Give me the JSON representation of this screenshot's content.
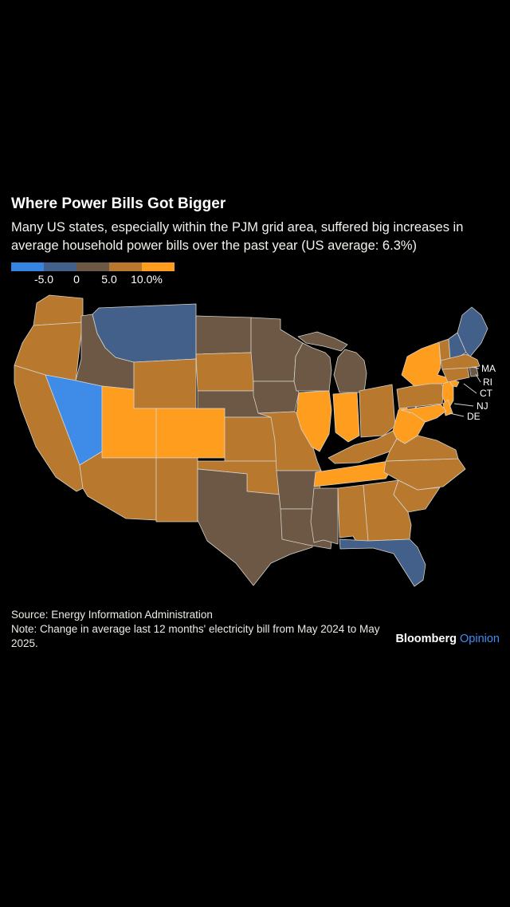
{
  "header": {
    "title": "Where Power Bills Got Bigger",
    "subtitle": "Many US states, especially within the PJM grid area, suffered big increases in average household power bills over the past year (US average: 6.3%)"
  },
  "legend": {
    "colors": [
      "#3584DF",
      "#43608A",
      "#6C5844",
      "#B8792F",
      "#FF9D1F"
    ],
    "ticks": [
      "-5.0",
      "0",
      "5.0",
      "10.0%"
    ]
  },
  "footer": {
    "source": "Source: Energy Information Administration",
    "note": "Note: Change in average last 12 months' electricity bill from May 2024 to May 2025.",
    "brand": "Bloomberg",
    "brand_edition": "Opinion",
    "brand_edition_color": "#3D8FF5"
  },
  "chart_data": {
    "type": "choropleth",
    "title": "Where Power Bills Got Bigger",
    "metric": "Change in average last 12 months' electricity bill, May 2024 to May 2025",
    "unit": "%",
    "us_average_pct": 6.3,
    "bins": [
      "< -5",
      "-5 to 0",
      "0 to 5",
      "5 to 10",
      "> 10"
    ],
    "colors": [
      "#3F8BE8",
      "#43608A",
      "#6C5844",
      "#B8792F",
      "#FF9D1F"
    ],
    "legend_tick_labels": [
      "-5.0",
      "0",
      "5.0",
      "10.0%"
    ],
    "small_state_labels": [
      "MA",
      "RI",
      "CT",
      "NJ",
      "DE"
    ],
    "states": {
      "WA": "5 to 10",
      "OR": "5 to 10",
      "CA": "5 to 10",
      "NV": "< -5",
      "ID": "0 to 5",
      "MT": "-5 to 0",
      "WY": "5 to 10",
      "UT": "> 10",
      "CO": "> 10",
      "AZ": "5 to 10",
      "NM": "5 to 10",
      "ND": "0 to 5",
      "SD": "5 to 10",
      "NE": "0 to 5",
      "KS": "5 to 10",
      "OK": "5 to 10",
      "TX": "0 to 5",
      "MN": "0 to 5",
      "IA": "0 to 5",
      "MO": "5 to 10",
      "AR": "0 to 5",
      "LA": "0 to 5",
      "WI": "0 to 5",
      "IL": "> 10",
      "MS": "0 to 5",
      "MI": "0 to 5",
      "IN": "> 10",
      "OH": "5 to 10",
      "KY": "5 to 10",
      "TN": "> 10",
      "AL": "5 to 10",
      "GA": "5 to 10",
      "FL": "-5 to 0",
      "SC": "5 to 10",
      "NC": "5 to 10",
      "VA": "5 to 10",
      "WV": "> 10",
      "PA": "5 to 10",
      "NY": "> 10",
      "NJ": "> 10",
      "DE": "> 10",
      "MD": "> 10",
      "VT": "5 to 10",
      "NH": "-5 to 0",
      "ME": "-5 to 0",
      "MA": "5 to 10",
      "RI": "0 to 5",
      "CT": "5 to 10"
    }
  }
}
